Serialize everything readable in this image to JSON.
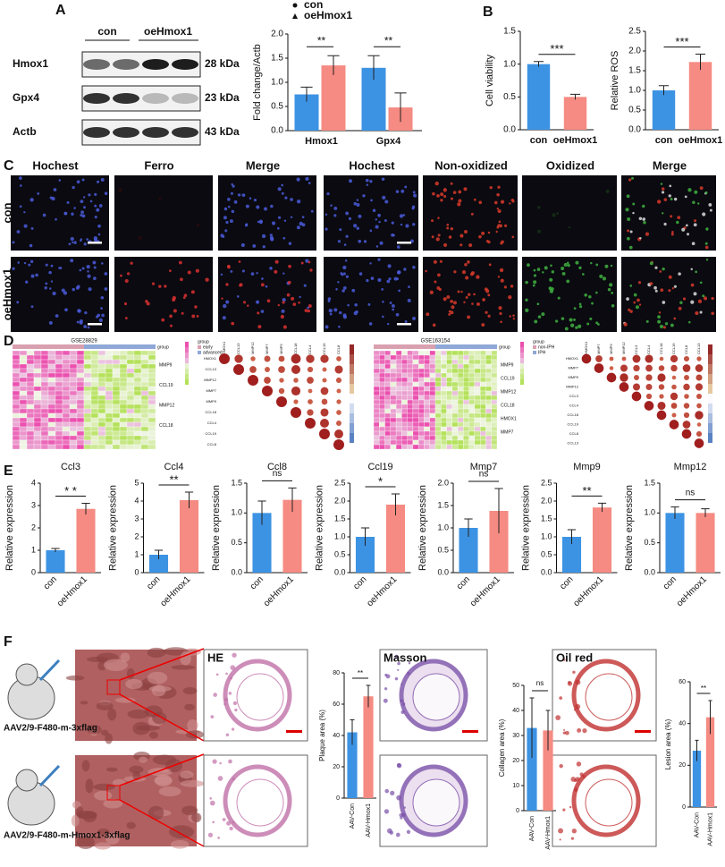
{
  "figure": {
    "panel_labels": [
      "A",
      "B",
      "C",
      "D",
      "E",
      "F"
    ],
    "blot": {
      "groups": [
        "con",
        "oeHmox1"
      ],
      "proteins": [
        "Hmox1",
        "Gpx4",
        "Actb"
      ],
      "sizes": [
        "28 kDa",
        "23 kDa",
        "43 kDa"
      ]
    },
    "staining": {
      "left_columns": [
        "Hochest",
        "Ferro",
        "Merge"
      ],
      "right_columns": [
        "Hochest",
        "Non-oxidized",
        "Oxidized",
        "Merge"
      ],
      "rows": [
        "con",
        "oeHmox1"
      ]
    },
    "heatmaps": [
      {
        "title": "GSE28829",
        "legend_title": "group",
        "groups": [
          "early",
          "advanced"
        ],
        "rows": [
          "MMP9",
          "CCL19",
          "MMP12",
          "CCL18"
        ],
        "corr_labels": [
          "HMOX1",
          "CCL13",
          "MMP12",
          "MMP7",
          "MMP9",
          "CCL18",
          "CCL4",
          "CCL19",
          "CCL8"
        ]
      },
      {
        "title": "GSE163154",
        "legend_title": "group",
        "groups": [
          "non-IPH",
          "IPH"
        ],
        "rows": [
          "MMP9",
          "CCL19",
          "MMP12",
          "CCL18",
          "HMOX1",
          "MMP7"
        ],
        "corr_labels": [
          "HMOX1",
          "MMP7",
          "MMP9",
          "MMP12",
          "CCL3",
          "CCL4",
          "CCL18",
          "CCL19",
          "CCL8",
          "CCL13"
        ]
      }
    ],
    "models": {
      "rows": [
        "AAV2/9-F480-m-3xflag",
        "AAV2/9-F480-m-Hmox1-3xflag"
      ],
      "stains": [
        "HE",
        "Masson",
        "Oil red"
      ]
    }
  },
  "chart_data": [
    {
      "type": "bar",
      "ylabel": "Fold change/Actb",
      "categories": [
        "Hmox1",
        "Gpx4"
      ],
      "series": [
        {
          "name": "con",
          "color": "#3d93e3",
          "values": [
            0.75,
            1.3
          ],
          "errors": [
            0.15,
            0.25
          ]
        },
        {
          "name": "oeHmox1",
          "color": "#f58b82",
          "values": [
            1.35,
            0.48
          ],
          "errors": [
            0.2,
            0.3
          ]
        }
      ],
      "annotations": [
        "**",
        "**"
      ],
      "ylim": [
        0,
        2
      ],
      "yticks": [
        {
          "value": 0,
          "label": "0.0"
        },
        {
          "value": 0.5,
          "label": "0.5"
        },
        {
          "value": 1,
          "label": "1.0"
        },
        {
          "value": 1.5,
          "label": "1.5"
        },
        {
          "value": 2,
          "label": "2.0"
        }
      ]
    },
    {
      "type": "bar",
      "ylabel": "Cell viability",
      "categories": [
        "con",
        "oeHmox1"
      ],
      "colors": [
        "#3d93e3",
        "#f58b82"
      ],
      "values": [
        1.0,
        0.5
      ],
      "errors": [
        0.04,
        0.04
      ],
      "annotation": "***",
      "ylim": [
        0,
        1.5
      ],
      "yticks": [
        {
          "value": 0,
          "label": "0.0"
        },
        {
          "value": 0.5,
          "label": "0.5"
        },
        {
          "value": 1,
          "label": "1.0"
        },
        {
          "value": 1.5,
          "label": "1.5"
        }
      ]
    },
    {
      "type": "bar",
      "ylabel": "Relative ROS",
      "categories": [
        "con",
        "oeHmox1"
      ],
      "colors": [
        "#3d93e3",
        "#f58b82"
      ],
      "values": [
        1.0,
        1.72
      ],
      "errors": [
        0.12,
        0.2
      ],
      "annotation": "***",
      "ylim": [
        0,
        2.5
      ],
      "yticks": [
        {
          "value": 0,
          "label": "0.0"
        },
        {
          "value": 0.5,
          "label": "0.5"
        },
        {
          "value": 1,
          "label": "1.0"
        },
        {
          "value": 1.5,
          "label": "1.5"
        },
        {
          "value": 2,
          "label": "2.0"
        },
        {
          "value": 2.5,
          "label": "2.5"
        }
      ]
    },
    {
      "type": "bar",
      "title": "Ccl3",
      "ylabel": "Relative expression",
      "categories": [
        "con",
        "oeHmox1"
      ],
      "colors": [
        "#3d93e3",
        "#f58b82"
      ],
      "values": [
        1.0,
        2.85
      ],
      "errors": [
        0.08,
        0.25
      ],
      "annotation": "* *",
      "ylim": [
        0,
        4
      ],
      "yticks": [
        0,
        1,
        2,
        3,
        4
      ]
    },
    {
      "type": "bar",
      "title": "Ccl4",
      "ylabel": "Relative expression",
      "categories": [
        "con",
        "oeHmox1"
      ],
      "colors": [
        "#3d93e3",
        "#f58b82"
      ],
      "values": [
        1.0,
        4.05
      ],
      "errors": [
        0.25,
        0.45
      ],
      "annotation": "**",
      "ylim": [
        0,
        5
      ],
      "yticks": [
        0,
        1,
        2,
        3,
        4,
        5
      ]
    },
    {
      "type": "bar",
      "title": "Ccl8",
      "ylabel": "Relative expression",
      "categories": [
        "con",
        "oeHmox1"
      ],
      "colors": [
        "#3d93e3",
        "#f58b82"
      ],
      "values": [
        1.0,
        1.22
      ],
      "errors": [
        0.2,
        0.2
      ],
      "annotation": "ns",
      "ylim": [
        0,
        1.5
      ],
      "yticks": [
        {
          "value": 0,
          "label": "0.0"
        },
        {
          "value": 0.5,
          "label": "0.5"
        },
        {
          "value": 1,
          "label": "1.0"
        },
        {
          "value": 1.5,
          "label": "1.5"
        }
      ]
    },
    {
      "type": "bar",
      "title": "Ccl19",
      "ylabel": "Relative expression",
      "categories": [
        "con",
        "oeHmox1"
      ],
      "colors": [
        "#3d93e3",
        "#f58b82"
      ],
      "values": [
        1.0,
        1.9
      ],
      "errors": [
        0.25,
        0.3
      ],
      "annotation": "*",
      "ylim": [
        0,
        2.5
      ],
      "yticks": [
        {
          "value": 0,
          "label": "0.0"
        },
        {
          "value": 0.5,
          "label": "0.5"
        },
        {
          "value": 1,
          "label": "1.0"
        },
        {
          "value": 1.5,
          "label": "1.5"
        },
        {
          "value": 2,
          "label": "2.0"
        },
        {
          "value": 2.5,
          "label": "2.5"
        }
      ]
    },
    {
      "type": "bar",
      "title": "Mmp7",
      "ylabel": "Relative expression",
      "categories": [
        "con",
        "oeHmox1"
      ],
      "colors": [
        "#3d93e3",
        "#f58b82"
      ],
      "values": [
        1.0,
        1.38
      ],
      "errors": [
        0.2,
        0.5
      ],
      "annotation": "ns",
      "ylim": [
        0,
        2
      ],
      "yticks": [
        {
          "value": 0,
          "label": "0.0"
        },
        {
          "value": 0.5,
          "label": "0.5"
        },
        {
          "value": 1,
          "label": "1.0"
        },
        {
          "value": 1.5,
          "label": "1.5"
        },
        {
          "value": 2,
          "label": "2.0"
        }
      ]
    },
    {
      "type": "bar",
      "title": "Mmp9",
      "ylabel": "Relative expression",
      "categories": [
        "con",
        "oeHmox1"
      ],
      "colors": [
        "#3d93e3",
        "#f58b82"
      ],
      "values": [
        1.0,
        1.82
      ],
      "errors": [
        0.2,
        0.12
      ],
      "annotation": "**",
      "ylim": [
        0,
        2.5
      ],
      "yticks": [
        {
          "value": 0,
          "label": "0.0"
        },
        {
          "value": 0.5,
          "label": "0.5"
        },
        {
          "value": 1,
          "label": "1.0"
        },
        {
          "value": 1.5,
          "label": "1.5"
        },
        {
          "value": 2,
          "label": "2.0"
        },
        {
          "value": 2.5,
          "label": "2.5"
        }
      ]
    },
    {
      "type": "bar",
      "title": "Mmp12",
      "ylabel": "Relative expression",
      "categories": [
        "con",
        "oeHmox1"
      ],
      "colors": [
        "#3d93e3",
        "#f58b82"
      ],
      "values": [
        1.0,
        1.0
      ],
      "errors": [
        0.1,
        0.07
      ],
      "annotation": "ns",
      "ylim": [
        0,
        1.5
      ],
      "yticks": [
        {
          "value": 0,
          "label": "0.0"
        },
        {
          "value": 0.5,
          "label": "0.5"
        },
        {
          "value": 1,
          "label": "1.0"
        },
        {
          "value": 1.5,
          "label": "1.5"
        }
      ]
    },
    {
      "type": "bar",
      "ylabel": "Plaque area (%)",
      "categories": [
        "AAV-Con",
        "AAV-Hmox1"
      ],
      "colors": [
        "#3d93e3",
        "#f58b82"
      ],
      "values": [
        42,
        65
      ],
      "errors": [
        8,
        7
      ],
      "annotation": "**",
      "ylim": [
        0,
        80
      ],
      "yticks": [
        0,
        20,
        40,
        60,
        80
      ]
    },
    {
      "type": "bar",
      "ylabel": "Collagen area (%)",
      "categories": [
        "AAV-Con",
        "AAV-Hmox1"
      ],
      "colors": [
        "#3d93e3",
        "#f58b82"
      ],
      "values": [
        33,
        32
      ],
      "errors": [
        12,
        8
      ],
      "annotation": "ns",
      "ylim": [
        0,
        50
      ],
      "yticks": [
        0,
        10,
        20,
        30,
        40,
        50
      ]
    },
    {
      "type": "bar",
      "ylabel": "Lesion area (%)",
      "categories": [
        "AAV-Con",
        "AAV-Hmox1"
      ],
      "colors": [
        "#3d93e3",
        "#f58b82"
      ],
      "values": [
        27,
        43
      ],
      "errors": [
        5,
        8
      ],
      "annotation": "**",
      "ylim": [
        0,
        60
      ],
      "yticks": [
        0,
        20,
        40,
        60
      ]
    }
  ]
}
